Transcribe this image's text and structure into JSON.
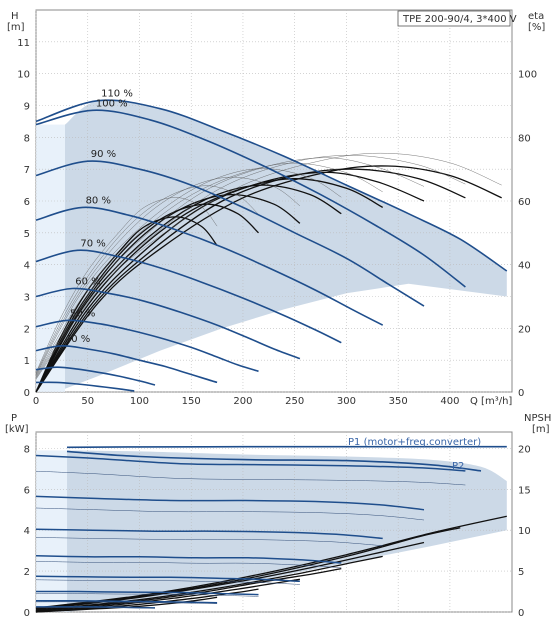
{
  "title": "TPE 200-90/4, 3*400 V",
  "chart_data": [
    {
      "type": "line",
      "title": "TPE 200-90/4, 3*400 V",
      "xlabel": "Q [m³/h]",
      "ylabel": [
        "H",
        "[m]"
      ],
      "y2label": [
        "eta",
        "[%]"
      ],
      "xlim": [
        0,
        460
      ],
      "ylim": [
        0,
        12
      ],
      "y2lim": [
        0,
        120
      ],
      "x_ticks": [
        "0",
        "50",
        "100",
        "150",
        "200",
        "250",
        "300",
        "350",
        "400"
      ],
      "y_ticks": [
        "0",
        "1",
        "2",
        "3",
        "4",
        "5",
        "6",
        "7",
        "8",
        "9",
        "10",
        "11"
      ],
      "y2_ticks": [
        "0",
        "20",
        "40",
        "60",
        "80",
        "100"
      ],
      "grid": true,
      "head_curves": [
        {
          "speed": "110 %",
          "x": [
            0,
            60,
            120,
            180,
            240,
            300,
            360,
            410,
            455
          ],
          "y": [
            8.5,
            9.15,
            8.9,
            8.2,
            7.4,
            6.5,
            5.6,
            4.8,
            3.8
          ]
        },
        {
          "speed": "100 %",
          "x": [
            0,
            55,
            110,
            165,
            220,
            275,
            330,
            375,
            415
          ],
          "y": [
            8.4,
            8.85,
            8.55,
            7.9,
            7.1,
            6.2,
            5.2,
            4.3,
            3.3
          ]
        },
        {
          "speed": "90 %",
          "x": [
            0,
            50,
            100,
            150,
            200,
            250,
            300,
            340,
            375
          ],
          "y": [
            6.8,
            7.25,
            7.0,
            6.5,
            5.8,
            5.0,
            4.2,
            3.4,
            2.7
          ]
        },
        {
          "speed": "80 %",
          "x": [
            0,
            45,
            90,
            135,
            180,
            225,
            270,
            305,
            335
          ],
          "y": [
            5.4,
            5.8,
            5.55,
            5.1,
            4.55,
            3.9,
            3.2,
            2.6,
            2.1
          ]
        },
        {
          "speed": "70 %",
          "x": [
            0,
            40,
            80,
            120,
            160,
            200,
            240,
            270,
            295
          ],
          "y": [
            4.1,
            4.45,
            4.25,
            3.9,
            3.45,
            2.95,
            2.4,
            1.95,
            1.55
          ]
        },
        {
          "speed": "60 %",
          "x": [
            0,
            35,
            70,
            105,
            140,
            175,
            205,
            230,
            255
          ],
          "y": [
            3.0,
            3.25,
            3.1,
            2.85,
            2.5,
            2.1,
            1.7,
            1.35,
            1.05
          ]
        },
        {
          "speed": "50 %",
          "x": [
            0,
            30,
            60,
            90,
            120,
            150,
            175,
            195,
            215
          ],
          "y": [
            2.05,
            2.25,
            2.15,
            1.95,
            1.7,
            1.4,
            1.1,
            0.85,
            0.65
          ]
        },
        {
          "speed": "40 %",
          "x": [
            0,
            25,
            50,
            75,
            100,
            125,
            145,
            160,
            175
          ],
          "y": [
            1.3,
            1.45,
            1.35,
            1.2,
            1.0,
            0.8,
            0.6,
            0.45,
            0.3
          ]
        },
        {
          "speed": "",
          "x": [
            0,
            20,
            40,
            60,
            80,
            100,
            115
          ],
          "y": [
            0.7,
            0.78,
            0.72,
            0.62,
            0.5,
            0.35,
            0.22
          ]
        },
        {
          "speed": "",
          "x": [
            0,
            20,
            40,
            60,
            80,
            95
          ],
          "y": [
            0.3,
            0.3,
            0.25,
            0.18,
            0.1,
            0.03
          ]
        }
      ],
      "efficiency_curves": [
        {
          "x": [
            0,
            60,
            120,
            200,
            280,
            340,
            400,
            450
          ],
          "eta": [
            0,
            28,
            45,
            61,
            69,
            71,
            68,
            61
          ]
        },
        {
          "x": [
            0,
            55,
            110,
            180,
            250,
            310,
            370,
            415
          ],
          "eta": [
            0,
            27,
            44,
            60,
            68,
            70,
            67,
            61
          ]
        },
        {
          "x": [
            0,
            50,
            100,
            160,
            220,
            280,
            330,
            375
          ],
          "eta": [
            0,
            26,
            43,
            58,
            66,
            69,
            66,
            60
          ]
        },
        {
          "x": [
            0,
            45,
            90,
            145,
            200,
            250,
            300,
            335
          ],
          "eta": [
            0,
            25,
            42,
            56,
            64,
            67,
            64,
            58
          ]
        },
        {
          "x": [
            0,
            40,
            80,
            130,
            175,
            220,
            265,
            295
          ],
          "eta": [
            0,
            24,
            40,
            54,
            62,
            65,
            62,
            56
          ]
        },
        {
          "x": [
            0,
            35,
            70,
            110,
            150,
            190,
            230,
            255
          ],
          "eta": [
            0,
            22,
            38,
            51,
            59,
            62,
            59,
            53
          ]
        },
        {
          "x": [
            0,
            30,
            60,
            95,
            130,
            165,
            195,
            215
          ],
          "eta": [
            0,
            20,
            35,
            48,
            56,
            59,
            56,
            50
          ]
        },
        {
          "x": [
            0,
            25,
            50,
            80,
            105,
            135,
            160,
            175
          ],
          "eta": [
            0,
            18,
            32,
            44,
            52,
            55,
            52,
            46
          ]
        }
      ],
      "operating_range_upper": {
        "x": [
          28,
          60,
          120,
          180,
          240,
          300,
          360,
          410,
          455
        ],
        "y": [
          8.4,
          9.15,
          8.9,
          8.2,
          7.4,
          6.5,
          5.6,
          4.8,
          3.8
        ]
      },
      "operating_range_lower": {
        "x": [
          455,
          360,
          300,
          240,
          180,
          120,
          60,
          28
        ],
        "y": [
          3.0,
          3.4,
          3.1,
          2.6,
          2.0,
          1.3,
          0.5,
          0.1
        ]
      }
    },
    {
      "type": "line",
      "xlim": [
        0,
        460
      ],
      "ylim": [
        0,
        8.8
      ],
      "y2lim": [
        0,
        22
      ],
      "ylabel": [
        "P",
        "[kW]"
      ],
      "y2label": [
        "NPSH",
        "[m]"
      ],
      "x_ticks": [],
      "y_ticks": [
        "0",
        "2",
        "4",
        "6",
        "8"
      ],
      "y2_ticks": [
        "0",
        "5",
        "10",
        "15",
        "20"
      ],
      "grid": true,
      "series": [
        {
          "name": "P1 (motor+freq.converter)",
          "x": [
            30,
            100,
            200,
            300,
            400,
            455
          ],
          "y": [
            8.05,
            8.07,
            8.08,
            8.08,
            8.08,
            8.08
          ]
        },
        {
          "name": "P2",
          "x": [
            30,
            100,
            200,
            300,
            380,
            430
          ],
          "y": [
            7.85,
            7.6,
            7.45,
            7.4,
            7.2,
            6.9
          ]
        }
      ],
      "power_curves": [
        {
          "x": [
            0,
            60,
            140,
            220,
            300,
            370,
            415
          ],
          "y": [
            7.65,
            7.5,
            7.25,
            7.2,
            7.15,
            7.05,
            6.9
          ]
        },
        {
          "x": [
            0,
            60,
            130,
            200,
            270,
            330,
            375
          ],
          "y": [
            5.65,
            5.55,
            5.45,
            5.45,
            5.4,
            5.25,
            5.0
          ]
        },
        {
          "x": [
            0,
            55,
            115,
            175,
            240,
            290,
            335
          ],
          "y": [
            4.05,
            4.0,
            3.95,
            3.95,
            3.9,
            3.8,
            3.6
          ]
        },
        {
          "x": [
            0,
            50,
            100,
            155,
            205,
            255,
            295
          ],
          "y": [
            2.75,
            2.7,
            2.7,
            2.65,
            2.65,
            2.55,
            2.4
          ]
        },
        {
          "x": [
            0,
            45,
            90,
            130,
            175,
            215,
            255
          ],
          "y": [
            1.75,
            1.72,
            1.7,
            1.7,
            1.65,
            1.6,
            1.5
          ]
        },
        {
          "x": [
            0,
            40,
            75,
            110,
            145,
            180,
            215
          ],
          "y": [
            1.0,
            1.0,
            0.98,
            0.97,
            0.95,
            0.9,
            0.85
          ]
        },
        {
          "x": [
            0,
            35,
            60,
            90,
            120,
            150,
            175
          ],
          "y": [
            0.55,
            0.55,
            0.54,
            0.52,
            0.5,
            0.48,
            0.45
          ]
        },
        {
          "x": [
            0,
            25,
            50,
            70,
            95,
            115
          ],
          "y": [
            0.25,
            0.25,
            0.25,
            0.24,
            0.22,
            0.2
          ]
        }
      ],
      "npsh_curves": [
        {
          "x": [
            0,
            100,
            200,
            300,
            380,
            455
          ],
          "npsh": [
            0.5,
            2.0,
            4.2,
            7.0,
            9.6,
            11.7
          ]
        },
        {
          "x": [
            0,
            100,
            200,
            300,
            370,
            410
          ],
          "npsh": [
            0.4,
            1.9,
            4.0,
            6.8,
            9.2,
            10.3
          ]
        },
        {
          "x": [
            0,
            100,
            200,
            280,
            340,
            375
          ],
          "npsh": [
            0.3,
            1.8,
            3.8,
            5.8,
            7.5,
            8.5
          ]
        },
        {
          "x": [
            0,
            100,
            180,
            250,
            300,
            335
          ],
          "npsh": [
            0.2,
            1.5,
            3.0,
            4.6,
            5.9,
            6.8
          ]
        },
        {
          "x": [
            0,
            90,
            160,
            220,
            265,
            295
          ],
          "npsh": [
            0.1,
            1.2,
            2.4,
            3.7,
            4.6,
            5.3
          ]
        },
        {
          "x": [
            0,
            80,
            140,
            190,
            230,
            255
          ],
          "npsh": [
            0.0,
            0.9,
            1.8,
            2.7,
            3.5,
            4.0
          ]
        },
        {
          "x": [
            0,
            70,
            120,
            160,
            195,
            215
          ],
          "npsh": [
            0.0,
            0.6,
            1.2,
            1.8,
            2.4,
            2.8
          ]
        },
        {
          "x": [
            0,
            60,
            100,
            135,
            160,
            175
          ],
          "npsh": [
            0.0,
            0.4,
            0.7,
            1.1,
            1.5,
            1.8
          ]
        }
      ],
      "operating_range_upper": {
        "x": [
          30,
          100,
          200,
          300,
          380,
          430,
          455
        ],
        "y": [
          7.9,
          7.85,
          7.7,
          7.6,
          7.45,
          7.1,
          6.4
        ]
      },
      "operating_range_lower": {
        "x": [
          455,
          380,
          300,
          220,
          150,
          80,
          30
        ],
        "y": [
          4.0,
          3.2,
          2.4,
          1.6,
          0.9,
          0.3,
          0.0
        ]
      }
    }
  ],
  "colors": {
    "head_curve": "#1f4e8c",
    "efficiency_curve": "#111111",
    "operating_range": "#c9d7e6",
    "grid": "#bbbbbb",
    "label_blue": "#3a66a8"
  }
}
